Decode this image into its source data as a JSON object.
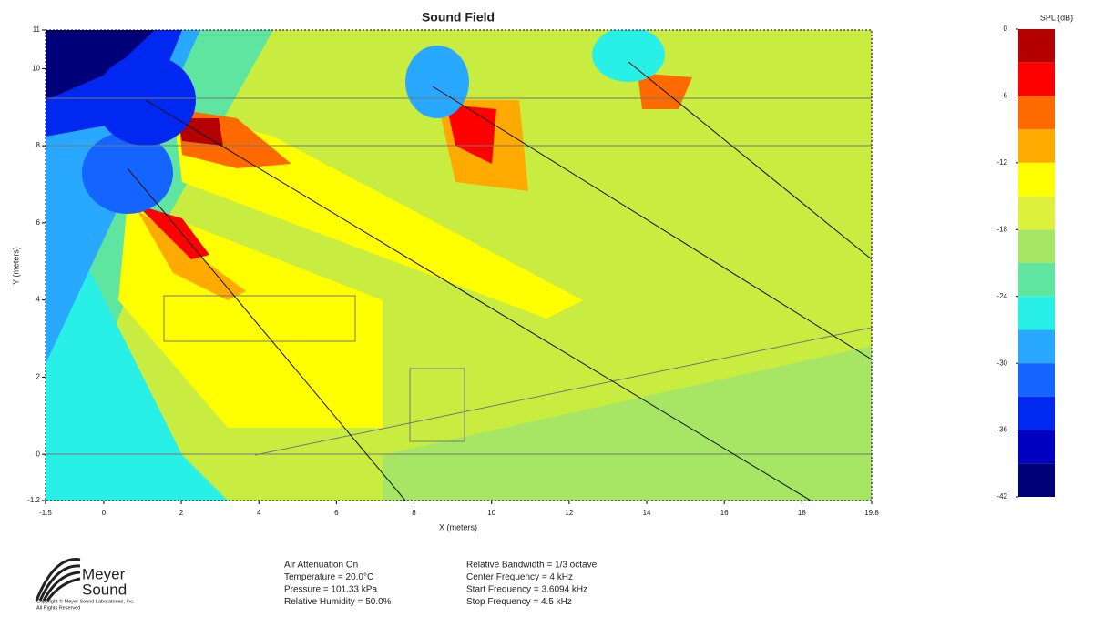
{
  "chart_data": {
    "type": "heatmap",
    "title": "Sound Field",
    "x_label": "X (meters)",
    "y_label": "Y (meters)",
    "xlim": [
      -1.5,
      19.8
    ],
    "xticks": [
      -1.5,
      0,
      2,
      4,
      6,
      8,
      10,
      12,
      14,
      16,
      18,
      19.8
    ],
    "ylim": [
      -1.2,
      11
    ],
    "yticks": [
      -1.2,
      0,
      2,
      4,
      6,
      8,
      10,
      11
    ],
    "colorbar": {
      "label": "SPL (dB)",
      "lim": [
        0,
        -42
      ],
      "ticks": [
        0,
        -6,
        -12,
        -18,
        -24,
        -30,
        -36,
        -42
      ],
      "bins": [
        0,
        -3,
        -6,
        -9,
        -12,
        -15,
        -18,
        -21,
        -24,
        -27,
        -30,
        -33,
        -36,
        -39,
        -42
      ],
      "colors": [
        "#b40000",
        "#ff0000",
        "#ff6a00",
        "#ffaa00",
        "#ffff00",
        "#dcf03c",
        "#a6e664",
        "#5ee6a0",
        "#28f0e6",
        "#28a8ff",
        "#1464ff",
        "#0028f0",
        "#0000c0",
        "#000078"
      ]
    }
  },
  "info": {
    "left": [
      "Air Attenuation On",
      "Temperature = 20.0°C",
      "Pressure = 101.33  kPa",
      "Relative Humidity = 50.0%"
    ],
    "right": [
      "Relative Bandwidth = 1/3 octave",
      "Center Frequency = 4 kHz",
      "Start Frequency = 3.6094 kHz",
      "Stop Frequency = 4.5 kHz"
    ]
  },
  "logo": {
    "line1": "Meyer",
    "line2": "Sound",
    "copyright": "Copyright © Meyer Sound Laboratories, Inc.",
    "rights": "All Rights Reserved"
  }
}
